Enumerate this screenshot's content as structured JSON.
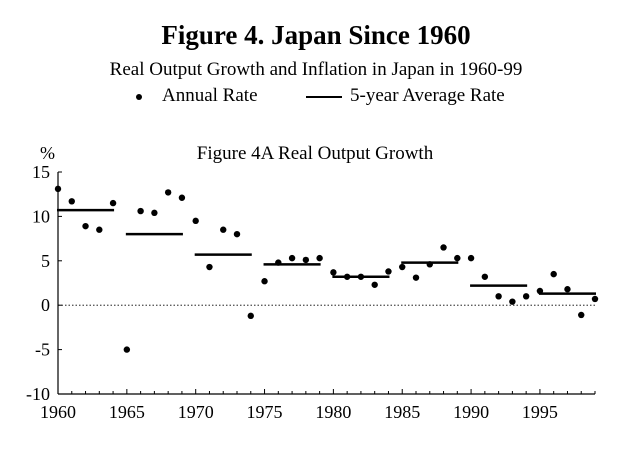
{
  "figure": {
    "title": "Figure 4. Japan Since 1960",
    "subtitle": "Real Output Growth and Inflation in Japan in 1960-99",
    "legend": {
      "annual_label": "Annual Rate",
      "average_label": "5-year Average Rate"
    }
  },
  "chart_data": {
    "type": "scatter",
    "title": "Figure 4A Real Output Growth",
    "ylabel": "%",
    "xlabel": "",
    "xlim": [
      1960,
      1999
    ],
    "ylim": [
      -10,
      15
    ],
    "x_ticks": [
      "1960",
      "1965",
      "1970",
      "1975",
      "1980",
      "1985",
      "1990",
      "1995"
    ],
    "y_ticks": [
      "15",
      "10",
      "5",
      "0",
      "-5",
      "-10"
    ],
    "zero_line": true,
    "series": [
      {
        "type": "scatter",
        "x": [
          1960,
          1961,
          1962,
          1963,
          1964,
          1965,
          1966,
          1967,
          1968,
          1969,
          1970,
          1971,
          1972,
          1973,
          1974,
          1975,
          1976,
          1977,
          1978,
          1979,
          1980,
          1981,
          1982,
          1983,
          1984,
          1985,
          1986,
          1987,
          1988,
          1989,
          1990,
          1991,
          1992,
          1993,
          1994,
          1995,
          1996,
          1997,
          1998,
          1999
        ],
        "y": [
          13.1,
          11.7,
          8.9,
          8.5,
          11.5,
          -5.0,
          10.6,
          10.4,
          12.7,
          12.1,
          9.5,
          4.3,
          8.5,
          8.0,
          -1.2,
          2.7,
          4.8,
          5.3,
          5.1,
          5.3,
          3.7,
          3.2,
          3.2,
          2.3,
          3.8,
          4.3,
          3.1,
          4.6,
          6.5,
          5.3,
          5.3,
          3.2,
          1.0,
          0.4,
          1.0,
          1.6,
          3.5,
          1.8,
          -1.1,
          0.7
        ]
      },
      {
        "type": "segments",
        "segments": [
          {
            "x0": 1960,
            "x1": 1964,
            "y": 10.7
          },
          {
            "x0": 1965,
            "x1": 1969,
            "y": 8.0
          },
          {
            "x0": 1970,
            "x1": 1974,
            "y": 5.7
          },
          {
            "x0": 1975,
            "x1": 1979,
            "y": 4.6
          },
          {
            "x0": 1980,
            "x1": 1984,
            "y": 3.2
          },
          {
            "x0": 1985,
            "x1": 1989,
            "y": 4.8
          },
          {
            "x0": 1990,
            "x1": 1994,
            "y": 2.2
          },
          {
            "x0": 1995,
            "x1": 1999,
            "y": 1.3
          }
        ]
      }
    ]
  }
}
